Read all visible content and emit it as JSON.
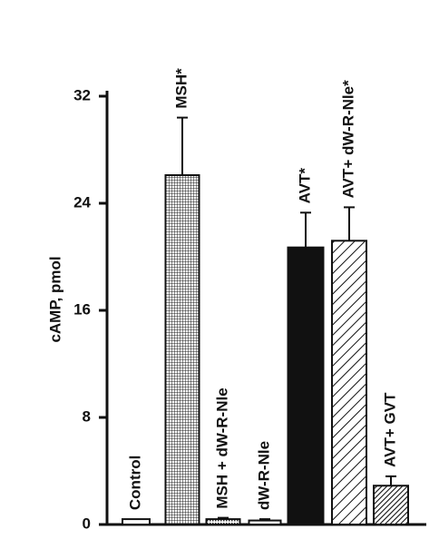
{
  "chart_data": {
    "type": "bar",
    "y_label": "cAMP, pmol",
    "categories": [
      "Control",
      "MSH*",
      "MSH + dW-R-Nle",
      "dW-R-Nle",
      "AVT*",
      "AVT+ dW-R-Nle*",
      "AVT+ GVT"
    ],
    "values": [
      0.4,
      26.1,
      0.4,
      0.3,
      20.7,
      21.2,
      2.9
    ],
    "errors": [
      0,
      4.3,
      0.1,
      0.1,
      2.6,
      2.5,
      0.7
    ],
    "fills": [
      "white",
      "grid",
      "dots",
      "white",
      "black",
      "hatch",
      "dense-hatch"
    ],
    "ylim": [
      0,
      32
    ],
    "yticks": [
      0,
      8,
      16,
      24,
      32
    ]
  }
}
